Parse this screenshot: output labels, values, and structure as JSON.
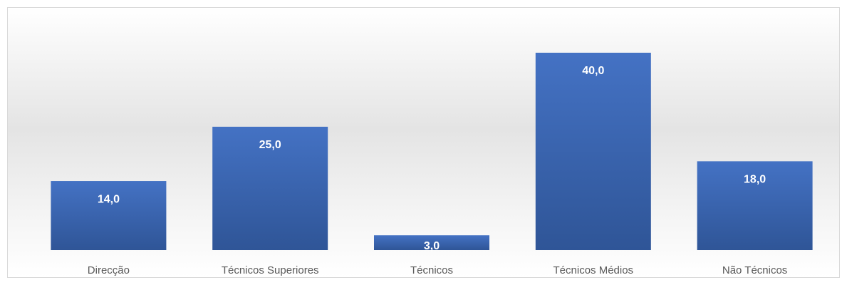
{
  "chart_data": {
    "type": "bar",
    "categories": [
      "Direcção",
      "Técnicos Superiores",
      "Técnicos",
      "Técnicos Médios",
      "Não Técnicos"
    ],
    "values": [
      14,
      25,
      3,
      40,
      18
    ],
    "value_labels": [
      "14,0",
      "25,0",
      "3,0",
      "40,0",
      "18,0"
    ],
    "color": "#4472c4"
  }
}
